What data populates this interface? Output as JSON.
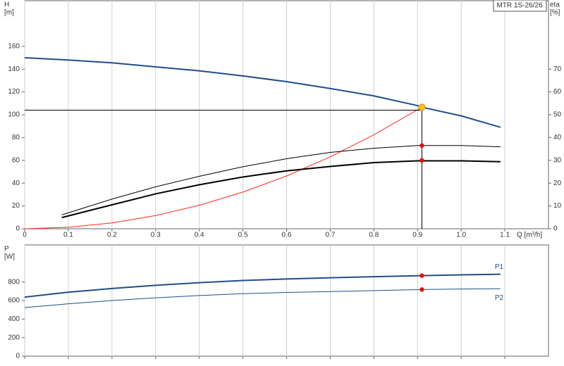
{
  "chart_data": [
    {
      "type": "line",
      "title": "MTR 1S-26/26",
      "ylabel": [
        "H",
        "[m]"
      ],
      "y2label": [
        "eta",
        "[%]"
      ],
      "xlabel": "Q [m³/h]",
      "xlim": [
        0,
        1.2
      ],
      "xticks": [
        0,
        0.1,
        0.2,
        0.3,
        0.4,
        0.5,
        0.6,
        0.7,
        0.8,
        0.9,
        {
          "value": 1,
          "label": "1.0"
        },
        1.1
      ],
      "ylim": [
        0,
        200
      ],
      "yticks": [
        0,
        20,
        40,
        60,
        80,
        100,
        120,
        140,
        160
      ],
      "y2lim": [
        0,
        100
      ],
      "y2ticks": [
        0,
        10,
        20,
        30,
        40,
        50,
        60,
        70
      ],
      "grid": "x",
      "series": [
        {
          "color": "#1f4e8c",
          "width": 2,
          "x": [
            0,
            0.1,
            0.2,
            0.3,
            0.4,
            0.5,
            0.6,
            0.7,
            0.8,
            0.9,
            0.91,
            1.0,
            1.09
          ],
          "values": [
            150,
            148,
            145.5,
            142,
            138.5,
            134,
            129,
            123,
            116.5,
            108,
            106.6,
            99,
            89
          ]
        },
        {
          "color": "#ff2a1a",
          "width": 1,
          "x": [
            0,
            0.1,
            0.2,
            0.3,
            0.4,
            0.5,
            0.6,
            0.7,
            0.8,
            0.91
          ],
          "values": [
            0,
            1.3,
            5.1,
            11.6,
            20.6,
            32.2,
            46.3,
            63.1,
            82.4,
            106.6
          ]
        },
        {
          "color": "#000000",
          "width": 1,
          "axis": "y2",
          "x": [
            0.085,
            0.2,
            0.3,
            0.4,
            0.5,
            0.6,
            0.7,
            0.8,
            0.9,
            1.0,
            1.09
          ],
          "values": [
            6.1,
            13,
            18.4,
            23,
            27.2,
            30.7,
            33.5,
            35.3,
            36.5,
            36.5,
            35.9
          ]
        },
        {
          "color": "#000000",
          "width": 2,
          "axis": "y2",
          "x": [
            0.085,
            0.2,
            0.3,
            0.4,
            0.5,
            0.6,
            0.7,
            0.8,
            0.9,
            1.0,
            1.09
          ],
          "values": [
            4.9,
            10.5,
            15.3,
            19.3,
            22.7,
            25.4,
            27.3,
            29,
            29.8,
            29.8,
            29.4
          ]
        },
        {
          "color": "#000000",
          "width": 1,
          "x": [
            0,
            0.91
          ],
          "values": [
            104,
            104
          ]
        },
        {
          "color": "#000000",
          "width": 1,
          "x": [
            0.91,
            0.91
          ],
          "values": [
            0,
            106.6
          ]
        },
        {
          "color": "#f7c21c",
          "marker": true,
          "x": [
            0.91
          ],
          "values": [
            106.6
          ]
        },
        {
          "color": "#e01010",
          "marker": true,
          "axis": "y2",
          "x": [
            0.91,
            0.91
          ],
          "values": [
            36.5,
            30
          ]
        }
      ]
    },
    {
      "type": "line",
      "ylabel": [
        "P",
        "[W]"
      ],
      "xlim": [
        0,
        1.2
      ],
      "xticks": [
        0,
        0.1,
        0.2,
        0.3,
        0.4,
        0.5,
        0.6,
        0.7,
        0.8,
        0.9,
        1,
        1.1
      ],
      "show_xtick_labels": false,
      "ylim": [
        0,
        1200
      ],
      "yticks": [
        0,
        200,
        400,
        600,
        800
      ],
      "grid": "x",
      "series": [
        {
          "name": "P1",
          "color": "#1f4e8c",
          "width": 2,
          "x": [
            0,
            0.1,
            0.2,
            0.3,
            0.4,
            0.5,
            0.6,
            0.7,
            0.8,
            0.91,
            1.0,
            1.09
          ],
          "values": [
            637,
            690,
            730,
            764,
            793,
            816,
            833,
            846,
            857,
            869,
            877,
            884
          ]
        },
        {
          "name": "P2",
          "color": "#1f4e8c",
          "width": 1,
          "x": [
            0,
            0.1,
            0.2,
            0.3,
            0.4,
            0.5,
            0.6,
            0.7,
            0.8,
            0.91,
            1.0,
            1.09
          ],
          "values": [
            524,
            565,
            600,
            629,
            654,
            674,
            687,
            697,
            707,
            719,
            724,
            727
          ]
        },
        {
          "color": "#e01010",
          "marker": true,
          "x": [
            0.91,
            0.91
          ],
          "values": [
            869,
            719
          ]
        }
      ]
    }
  ]
}
